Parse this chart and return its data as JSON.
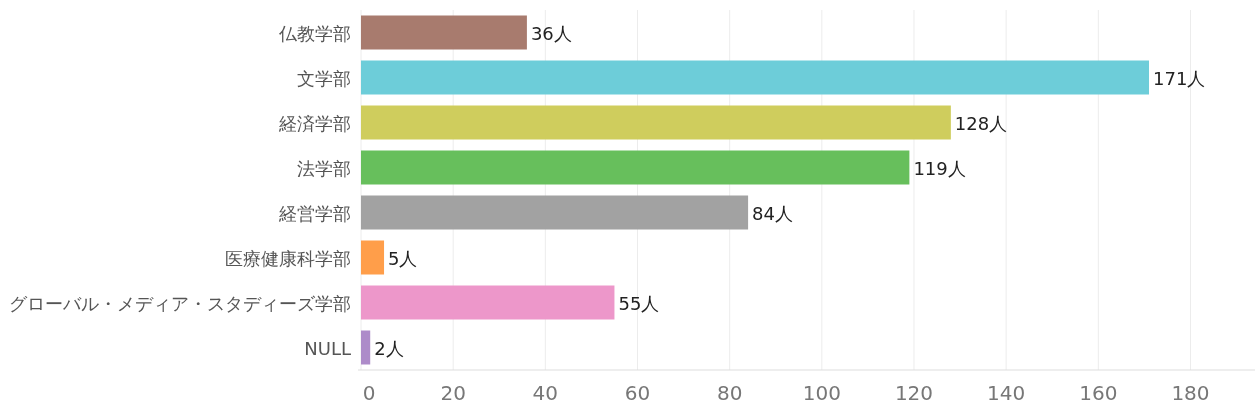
{
  "chart_data": {
    "type": "bar",
    "orientation": "horizontal",
    "categories": [
      "仏教学部",
      "文学部",
      "経済学部",
      "法学部",
      "経営学部",
      "医療健康科学部",
      "グローバル・メディア・スタディーズ学部",
      "NULL"
    ],
    "values": [
      36,
      171,
      128,
      119,
      84,
      5,
      55,
      2
    ],
    "colors": [
      "#a87b6e",
      "#6dcdd9",
      "#cfcd5d",
      "#67bf5c",
      "#a2a2a2",
      "#ff9e4a",
      "#ed97ca",
      "#ad8bc9"
    ],
    "value_labels": [
      "36人",
      "171人",
      "128人",
      "119人",
      "84人",
      "5人",
      "55人",
      "2人"
    ],
    "xlim": [
      0,
      194
    ],
    "xticks": [
      0,
      20,
      40,
      60,
      80,
      100,
      120,
      140,
      160,
      180
    ],
    "grid": "x"
  }
}
